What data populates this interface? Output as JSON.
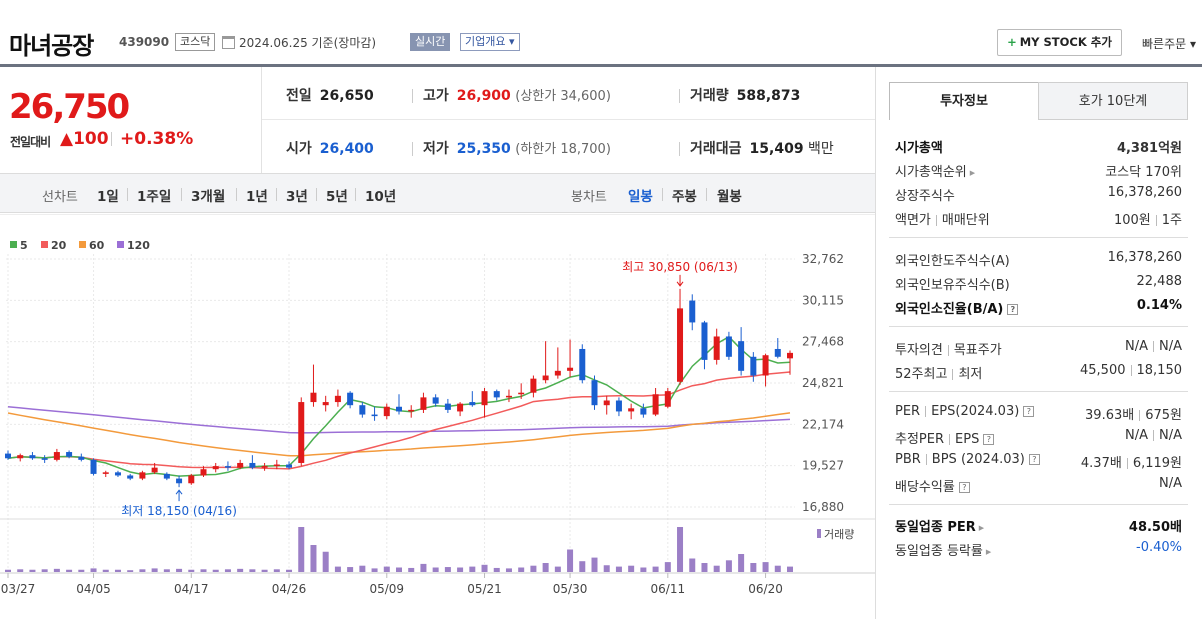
{
  "header": {
    "stock_name": "마녀공장",
    "stock_code": "439090",
    "market": "코스닥",
    "date_text": "2024.06.25  기준(장마감)",
    "realtime": "실시간",
    "company_info": "기업개요 ▾",
    "mystock_label": "MY STOCK 추가",
    "mystock_plus": "+",
    "quick_order": "빠른주문 ▾"
  },
  "price": {
    "current": "26,750",
    "diff_label": "전일대비",
    "diff_value": "▲100",
    "diff_pct": "+0.38%"
  },
  "quote": {
    "prev_label": "전일",
    "prev": "26,650",
    "high_label": "고가",
    "high": "26,900",
    "upper_limit": "(상한가 34,600)",
    "volume_label": "거래량",
    "volume": "588,873",
    "open_label": "시가",
    "open": "26,400",
    "low_label": "저가",
    "low": "25,350",
    "lower_limit": "(하한가 18,700)",
    "amount_label": "거래대금",
    "amount": "15,409",
    "amount_unit": "백만"
  },
  "period_bar": {
    "line_label": "선차트",
    "line_periods": [
      "1일",
      "1주일",
      "3개월",
      "1년",
      "3년",
      "5년",
      "10년"
    ],
    "candle_label": "봉차트",
    "candle_periods": [
      "일봉",
      "주봉",
      "월봉"
    ],
    "active_candle": "일봉"
  },
  "colors": {
    "up": "#e01a1a",
    "down": "#1a5fd0",
    "ma5": "#4caf50",
    "ma20": "#f25b5b",
    "ma60": "#f39a3c",
    "ma120": "#9b6fd6",
    "volume": "#9b7fc6"
  },
  "chart_data": {
    "type": "candlestick",
    "legend": [
      {
        "name": "5",
        "color": "#4caf50"
      },
      {
        "name": "20",
        "color": "#f25b5b"
      },
      {
        "name": "60",
        "color": "#f39a3c"
      },
      {
        "name": "120",
        "color": "#9b6fd6"
      }
    ],
    "y_ticks": [
      "32,762",
      "30,115",
      "27,468",
      "24,821",
      "22,174",
      "19,527",
      "16,880"
    ],
    "ylim": [
      16880,
      32762
    ],
    "x_ticks": [
      "03/27",
      "04/05",
      "04/17",
      "04/26",
      "05/09",
      "05/21",
      "05/30",
      "06/11",
      "06/20"
    ],
    "x_tick_index": [
      0,
      7,
      15,
      23,
      31,
      39,
      46,
      54,
      62
    ],
    "high_annotation": "최고 30,850 (06/13)",
    "low_annotation": "최저 18,150 (04/16)",
    "volume_label": "거래량",
    "candles": [
      {
        "o": 20300,
        "h": 20500,
        "l": 19900,
        "c": 20000
      },
      {
        "o": 20000,
        "h": 20300,
        "l": 19800,
        "c": 20200
      },
      {
        "o": 20200,
        "h": 20400,
        "l": 19900,
        "c": 20000
      },
      {
        "o": 20000,
        "h": 20200,
        "l": 19700,
        "c": 19900
      },
      {
        "o": 19900,
        "h": 20600,
        "l": 19800,
        "c": 20400
      },
      {
        "o": 20400,
        "h": 20500,
        "l": 20000,
        "c": 20100
      },
      {
        "o": 20100,
        "h": 20300,
        "l": 19800,
        "c": 19900
      },
      {
        "o": 19900,
        "h": 20000,
        "l": 18900,
        "c": 19000
      },
      {
        "o": 19000,
        "h": 19200,
        "l": 18800,
        "c": 19100
      },
      {
        "o": 19100,
        "h": 19200,
        "l": 18800,
        "c": 18900
      },
      {
        "o": 18900,
        "h": 19000,
        "l": 18600,
        "c": 18700
      },
      {
        "o": 18700,
        "h": 19200,
        "l": 18600,
        "c": 19100
      },
      {
        "o": 19100,
        "h": 19700,
        "l": 19000,
        "c": 19400
      },
      {
        "o": 19000,
        "h": 19100,
        "l": 18600,
        "c": 18700
      },
      {
        "o": 18700,
        "h": 18900,
        "l": 18150,
        "c": 18400
      },
      {
        "o": 18400,
        "h": 19000,
        "l": 18300,
        "c": 18900
      },
      {
        "o": 18900,
        "h": 19500,
        "l": 18800,
        "c": 19300
      },
      {
        "o": 19300,
        "h": 19700,
        "l": 19100,
        "c": 19500
      },
      {
        "o": 19500,
        "h": 19800,
        "l": 19200,
        "c": 19400
      },
      {
        "o": 19400,
        "h": 19900,
        "l": 19300,
        "c": 19700
      },
      {
        "o": 19700,
        "h": 20200,
        "l": 19300,
        "c": 19400
      },
      {
        "o": 19400,
        "h": 19700,
        "l": 19200,
        "c": 19500
      },
      {
        "o": 19500,
        "h": 19900,
        "l": 19300,
        "c": 19600
      },
      {
        "o": 19600,
        "h": 19800,
        "l": 19300,
        "c": 19400
      },
      {
        "o": 19700,
        "h": 23900,
        "l": 19500,
        "c": 23600
      },
      {
        "o": 23600,
        "h": 26000,
        "l": 23300,
        "c": 24200
      },
      {
        "o": 23400,
        "h": 24000,
        "l": 23000,
        "c": 23600
      },
      {
        "o": 23600,
        "h": 24400,
        "l": 23300,
        "c": 24000
      },
      {
        "o": 24200,
        "h": 24300,
        "l": 23200,
        "c": 23400
      },
      {
        "o": 23400,
        "h": 23600,
        "l": 22600,
        "c": 22800
      },
      {
        "o": 22800,
        "h": 23300,
        "l": 22400,
        "c": 22700
      },
      {
        "o": 22700,
        "h": 23500,
        "l": 22500,
        "c": 23300
      },
      {
        "o": 23300,
        "h": 24100,
        "l": 22800,
        "c": 23000
      },
      {
        "o": 23000,
        "h": 23400,
        "l": 22600,
        "c": 23100
      },
      {
        "o": 23100,
        "h": 24200,
        "l": 22900,
        "c": 23900
      },
      {
        "o": 23900,
        "h": 24100,
        "l": 23300,
        "c": 23500
      },
      {
        "o": 23500,
        "h": 23800,
        "l": 22900,
        "c": 23100
      },
      {
        "o": 23000,
        "h": 23600,
        "l": 22700,
        "c": 23500
      },
      {
        "o": 23600,
        "h": 24300,
        "l": 23300,
        "c": 23400
      },
      {
        "o": 23400,
        "h": 24500,
        "l": 22600,
        "c": 24300
      },
      {
        "o": 24300,
        "h": 24400,
        "l": 23700,
        "c": 23900
      },
      {
        "o": 23900,
        "h": 24400,
        "l": 23600,
        "c": 24000
      },
      {
        "o": 24100,
        "h": 24800,
        "l": 23800,
        "c": 24200
      },
      {
        "o": 24200,
        "h": 25300,
        "l": 23900,
        "c": 25100
      },
      {
        "o": 25000,
        "h": 27500,
        "l": 24800,
        "c": 25300
      },
      {
        "o": 25300,
        "h": 27100,
        "l": 25100,
        "c": 25600
      },
      {
        "o": 25600,
        "h": 27600,
        "l": 25200,
        "c": 25800
      },
      {
        "o": 27000,
        "h": 27300,
        "l": 24800,
        "c": 25000
      },
      {
        "o": 25000,
        "h": 25300,
        "l": 23100,
        "c": 23400
      },
      {
        "o": 23400,
        "h": 24000,
        "l": 22800,
        "c": 23700
      },
      {
        "o": 23700,
        "h": 23900,
        "l": 22700,
        "c": 23000
      },
      {
        "o": 23000,
        "h": 23500,
        "l": 22500,
        "c": 23200
      },
      {
        "o": 23200,
        "h": 23500,
        "l": 22600,
        "c": 22800
      },
      {
        "o": 22800,
        "h": 24500,
        "l": 22700,
        "c": 24100
      },
      {
        "o": 23300,
        "h": 24500,
        "l": 23200,
        "c": 24300
      },
      {
        "o": 24900,
        "h": 30850,
        "l": 24700,
        "c": 29600
      },
      {
        "o": 30100,
        "h": 30500,
        "l": 28200,
        "c": 28700
      },
      {
        "o": 28700,
        "h": 28800,
        "l": 25700,
        "c": 26300
      },
      {
        "o": 26300,
        "h": 28300,
        "l": 26000,
        "c": 27800
      },
      {
        "o": 27800,
        "h": 28100,
        "l": 26300,
        "c": 26500
      },
      {
        "o": 27500,
        "h": 28400,
        "l": 25300,
        "c": 25600
      },
      {
        "o": 26500,
        "h": 26800,
        "l": 24900,
        "c": 25300
      },
      {
        "o": 25300,
        "h": 26700,
        "l": 24600,
        "c": 26600
      },
      {
        "o": 27000,
        "h": 27700,
        "l": 26400,
        "c": 26500
      },
      {
        "o": 26400,
        "h": 26900,
        "l": 25350,
        "c": 26750
      }
    ],
    "volumes": [
      5,
      6,
      5,
      6,
      7,
      5,
      5,
      8,
      5,
      5,
      4,
      6,
      8,
      6,
      7,
      5,
      6,
      5,
      6,
      7,
      6,
      5,
      6,
      5,
      100,
      60,
      45,
      12,
      11,
      14,
      8,
      12,
      10,
      9,
      18,
      10,
      11,
      10,
      12,
      16,
      9,
      8,
      10,
      14,
      20,
      12,
      50,
      24,
      32,
      15,
      12,
      14,
      10,
      12,
      22,
      100,
      30,
      20,
      14,
      26,
      40,
      20,
      22,
      14,
      12
    ]
  },
  "right_panel": {
    "tabs": [
      "투자정보",
      "호가 10단계"
    ],
    "rows": [
      {
        "k": "시가총액",
        "v": "4,381억원"
      },
      {
        "k": "시가총액순위",
        "v": "코스닥 170위"
      },
      {
        "k": "상장주식수",
        "v": "16,378,260"
      },
      {
        "k": "액면가",
        "k2": "매매단위",
        "v": "100원",
        "v2": "1주"
      },
      {
        "k": "외국인한도주식수(A)",
        "v": "16,378,260"
      },
      {
        "k": "외국인보유주식수(B)",
        "v": "22,488"
      },
      {
        "k": "외국인소진율(B/A)",
        "v": "0.14%"
      },
      {
        "k": "투자의견",
        "k2": "목표주가",
        "v": "N/A",
        "v2": "N/A"
      },
      {
        "k": "52주최고",
        "k2": "최저",
        "v": "45,500",
        "v2": "18,150"
      },
      {
        "k": "PER",
        "k2": "EPS(2024.03)",
        "v": "39.63배",
        "v2": "675원"
      },
      {
        "k": "추정PER",
        "k2": "EPS",
        "v": "N/A",
        "v2": "N/A"
      },
      {
        "k": "PBR",
        "k2": "BPS (2024.03)",
        "v": "4.37배",
        "v2": "6,119원"
      },
      {
        "k": "배당수익률",
        "v": "N/A"
      },
      {
        "k": "동일업종 PER",
        "v": "48.50배"
      },
      {
        "k": "동일업종 등락률",
        "v": "-0.40%"
      }
    ]
  }
}
